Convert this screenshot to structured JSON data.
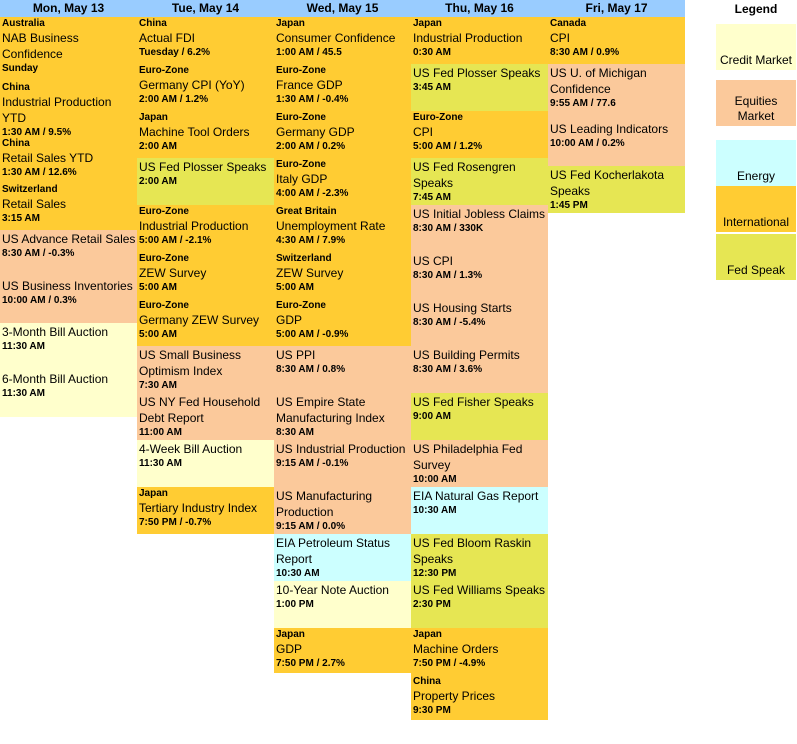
{
  "colors": {
    "header": "#99CCFF",
    "credit": "#FFFFCC",
    "equities": "#FBC99B",
    "energy": "#CCFFFF",
    "international": "#FFCC33",
    "fed": "#E6E653"
  },
  "legend": {
    "title": "Legend",
    "items": [
      {
        "label": "Credit Market",
        "cat": "credit"
      },
      {
        "label": "Equities Market",
        "cat": "equities"
      },
      {
        "label": "Energy",
        "cat": "energy"
      },
      {
        "label": "International",
        "cat": "international"
      },
      {
        "label": "Fed Speak",
        "cat": "fed"
      }
    ]
  },
  "days": [
    {
      "name": "Mon, May 13",
      "events": [
        {
          "region": "Australia",
          "name": "NAB Business Confidence",
          "time": "Sunday",
          "cat": "international"
        },
        {
          "region": "China",
          "name": "Industrial Production YTD",
          "time": "1:30 AM / 9.5%",
          "cat": "international"
        },
        {
          "region": "China",
          "name": "Retail Sales YTD",
          "time": "1:30 AM / 12.6%",
          "cat": "international"
        },
        {
          "region": "Switzerland",
          "name": "Retail Sales",
          "time": "3:15 AM",
          "cat": "international"
        },
        {
          "region": "",
          "name": "US Advance Retail Sales",
          "time": "8:30 AM / -0.3%",
          "cat": "equities"
        },
        {
          "region": "",
          "name": "US Business Inventories",
          "time": "10:00 AM / 0.3%",
          "cat": "equities"
        },
        {
          "region": "",
          "name": "3-Month Bill Auction",
          "time": "11:30 AM",
          "cat": "credit"
        },
        {
          "region": "",
          "name": "6-Month Bill Auction",
          "time": "11:30 AM",
          "cat": "credit"
        }
      ]
    },
    {
      "name": "Tue, May 14",
      "events": [
        {
          "region": "China",
          "name": "Actual FDI",
          "time": "Tuesday / 6.2%",
          "cat": "international"
        },
        {
          "region": "Euro-Zone",
          "name": "Germany CPI (YoY)",
          "time": "2:00 AM / 1.2%",
          "cat": "international"
        },
        {
          "region": "Japan",
          "name": "Machine Tool Orders",
          "time": "2:00 AM",
          "cat": "international"
        },
        {
          "region": "",
          "name": "US Fed Plosser Speaks",
          "time": "2:00 AM",
          "cat": "fed"
        },
        {
          "region": "Euro-Zone",
          "name": "Industrial Production",
          "time": "5:00 AM / -2.1%",
          "cat": "international"
        },
        {
          "region": "Euro-Zone",
          "name": "ZEW Survey",
          "time": "5:00 AM",
          "cat": "international"
        },
        {
          "region": "Euro-Zone",
          "name": "Germany ZEW Survey",
          "time": "5:00 AM",
          "cat": "international"
        },
        {
          "region": "",
          "name": "US Small Business Optimism Index",
          "time": "7:30 AM",
          "cat": "equities"
        },
        {
          "region": "",
          "name": "US NY Fed Household Debt Report",
          "time": "11:00 AM",
          "cat": "equities"
        },
        {
          "region": "",
          "name": "4-Week Bill Auction",
          "time": "11:30 AM",
          "cat": "credit"
        },
        {
          "region": "Japan",
          "name": "Tertiary Industry Index",
          "time": "7:50 PM / -0.7%",
          "cat": "international"
        }
      ]
    },
    {
      "name": "Wed, May 15",
      "events": [
        {
          "region": "Japan",
          "name": "Consumer Confidence",
          "time": "1:00 AM / 45.5",
          "cat": "international"
        },
        {
          "region": "Euro-Zone",
          "name": "France GDP",
          "time": "1:30 AM / -0.4%",
          "cat": "international"
        },
        {
          "region": "Euro-Zone",
          "name": "Germany GDP",
          "time": "2:00 AM / 0.2%",
          "cat": "international"
        },
        {
          "region": "Euro-Zone",
          "name": "Italy GDP",
          "time": "4:00 AM / -2.3%",
          "cat": "international"
        },
        {
          "region": "Great Britain",
          "name": "Unemployment Rate",
          "time": "4:30 AM / 7.9%",
          "cat": "international"
        },
        {
          "region": "Switzerland",
          "name": "ZEW Survey",
          "time": "5:00 AM",
          "cat": "international"
        },
        {
          "region": "Euro-Zone",
          "name": "GDP",
          "time": "5:00 AM / -0.9%",
          "cat": "international"
        },
        {
          "region": "",
          "name": "US PPI",
          "time": "8:30 AM / 0.8%",
          "cat": "equities"
        },
        {
          "region": "",
          "name": "US Empire State Manufacturing Index",
          "time": "8:30 AM",
          "cat": "equities"
        },
        {
          "region": "",
          "name": "US Industrial Production",
          "time": "9:15 AM / -0.1%",
          "cat": "equities"
        },
        {
          "region": "",
          "name": "US Manufacturing Production",
          "time": "9:15 AM / 0.0%",
          "cat": "equities"
        },
        {
          "region": "",
          "name": "EIA Petroleum Status Report",
          "time": "10:30 AM",
          "cat": "energy"
        },
        {
          "region": "",
          "name": "10-Year Note Auction",
          "time": "1:00 PM",
          "cat": "credit"
        },
        {
          "region": "Japan",
          "name": "GDP",
          "time": "7:50 PM / 2.7%",
          "cat": "international"
        }
      ]
    },
    {
      "name": "Thu, May 16",
      "events": [
        {
          "region": "Japan",
          "name": "Industrial Production",
          "time": "0:30 AM",
          "cat": "international"
        },
        {
          "region": "",
          "name": "US Fed Plosser Speaks",
          "time": "3:45 AM",
          "cat": "fed"
        },
        {
          "region": "Euro-Zone",
          "name": "CPI",
          "time": "5:00 AM / 1.2%",
          "cat": "international"
        },
        {
          "region": "",
          "name": "US Fed Rosengren Speaks",
          "time": "7:45 AM",
          "cat": "fed"
        },
        {
          "region": "",
          "name": "US Initial Jobless Claims",
          "time": "8:30 AM / 330K",
          "cat": "equities"
        },
        {
          "region": "",
          "name": "US CPI",
          "time": "8:30 AM / 1.3%",
          "cat": "equities"
        },
        {
          "region": "",
          "name": "US Housing Starts",
          "time": "8:30 AM / -5.4%",
          "cat": "equities"
        },
        {
          "region": "",
          "name": "US Building Permits",
          "time": "8:30 AM / 3.6%",
          "cat": "equities"
        },
        {
          "region": "",
          "name": "US Fed Fisher Speaks",
          "time": "9:00 AM",
          "cat": "fed"
        },
        {
          "region": "",
          "name": "US Philadelphia Fed Survey",
          "time": "10:00 AM",
          "cat": "equities"
        },
        {
          "region": "",
          "name": "EIA Natural Gas Report",
          "time": "10:30 AM",
          "cat": "energy"
        },
        {
          "region": "",
          "name": "US Fed Bloom Raskin Speaks",
          "time": "12:30 PM",
          "cat": "fed"
        },
        {
          "region": "",
          "name": "US Fed Williams Speaks",
          "time": "2:30 PM",
          "cat": "fed"
        },
        {
          "region": "Japan",
          "name": "Machine Orders",
          "time": "7:50 PM / -4.9%",
          "cat": "international"
        },
        {
          "region": "China",
          "name": "Property Prices",
          "time": "9:30 PM",
          "cat": "international"
        }
      ]
    },
    {
      "name": "Fri, May 17",
      "events": [
        {
          "region": "Canada",
          "name": "CPI",
          "time": "8:30 AM / 0.9%",
          "cat": "international"
        },
        {
          "region": "",
          "name": "US U. of Michigan Confidence",
          "time": "9:55 AM / 77.6",
          "cat": "equities"
        },
        {
          "region": "",
          "name": "US Leading Indicators",
          "time": "10:00 AM / 0.2%",
          "cat": "equities"
        },
        {
          "region": "",
          "name": "US Fed Kocherlakota Speaks",
          "time": "1:45 PM",
          "cat": "fed"
        }
      ]
    }
  ]
}
